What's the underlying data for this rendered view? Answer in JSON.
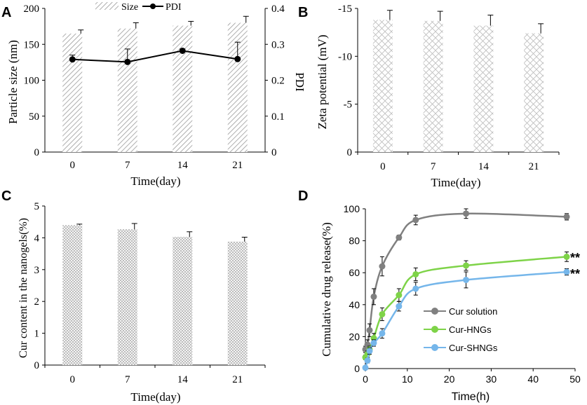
{
  "chart_data": [
    {
      "panel": "A",
      "type": "bar",
      "categories": [
        "0",
        "7",
        "14",
        "21"
      ],
      "xlabel": "Time(day)",
      "ylabel": "Particle size (nm)",
      "ylabel_right": "PDI",
      "ylim": [
        0,
        200
      ],
      "yticks": [
        "0",
        "50",
        "100",
        "150",
        "200"
      ],
      "ylim_right": [
        0,
        0.4
      ],
      "yticks_right": [
        "0",
        "0.1",
        "0.2",
        "0.3",
        "0.4"
      ],
      "series": [
        {
          "name": "Size",
          "type": "bar",
          "values": [
            165,
            172,
            176,
            180
          ],
          "errors": [
            5,
            8,
            6,
            9
          ]
        },
        {
          "name": "PDI",
          "type": "line",
          "axis": "right",
          "values": [
            0.258,
            0.251,
            0.282,
            0.259
          ],
          "errors": [
            0.012,
            0.036,
            0.005,
            0.047
          ]
        }
      ],
      "legend": [
        "Size",
        "PDI"
      ]
    },
    {
      "panel": "B",
      "type": "bar",
      "categories": [
        "0",
        "7",
        "14",
        "21"
      ],
      "xlabel": "Time(day)",
      "ylabel": "Zeta potential (mV)",
      "ylim": [
        0,
        -15
      ],
      "yticks": [
        "-15",
        "-10",
        "-5",
        "0"
      ],
      "series": [
        {
          "name": "Zeta potential",
          "values": [
            -13.8,
            -13.7,
            -13.2,
            -12.4
          ],
          "errors": [
            1.0,
            1.0,
            1.1,
            1.0
          ]
        }
      ]
    },
    {
      "panel": "C",
      "type": "bar",
      "categories": [
        "0",
        "7",
        "14",
        "21"
      ],
      "xlabel": "Time(day)",
      "ylabel": "Cur content in the nanogels(%)",
      "ylim": [
        0,
        5
      ],
      "yticks": [
        "0",
        "1",
        "2",
        "3",
        "4",
        "5"
      ],
      "series": [
        {
          "name": "Cur content",
          "values": [
            4.4,
            4.27,
            4.03,
            3.88
          ],
          "errors": [
            0.03,
            0.18,
            0.16,
            0.14
          ]
        }
      ]
    },
    {
      "panel": "D",
      "type": "line",
      "xlabel": "Time(h)",
      "ylabel": "Cumulative drug release(%)",
      "xlim": [
        0,
        50
      ],
      "xticks": [
        "0",
        "10",
        "20",
        "30",
        "40",
        "50"
      ],
      "ylim": [
        0,
        100
      ],
      "yticks": [
        "0",
        "20",
        "40",
        "60",
        "80",
        "100"
      ],
      "x": [
        0,
        0.5,
        1,
        2,
        4,
        8,
        12,
        24,
        48
      ],
      "series": [
        {
          "name": "Cur solution",
          "color": "#808080",
          "values": [
            12,
            15,
            24,
            45,
            64,
            82,
            93,
            97,
            95
          ],
          "errors": [
            2,
            3,
            4,
            5,
            6,
            1.5,
            3,
            3,
            2
          ]
        },
        {
          "name": "Cur-HNGs",
          "color": "#7ed348",
          "values": [
            7,
            9,
            12,
            19,
            34,
            46,
            59,
            64.5,
            70
          ],
          "errors": [
            1.5,
            2,
            2,
            3,
            4,
            4,
            4,
            3,
            3
          ]
        },
        {
          "name": "Cur-SHNGs",
          "color": "#75b6ea",
          "values": [
            0.5,
            5,
            11,
            16,
            22,
            39,
            50,
            55.5,
            60.5
          ],
          "errors": [
            1,
            1.5,
            2,
            2,
            3,
            3,
            4,
            5,
            2
          ]
        }
      ],
      "annotations": [
        "**",
        "**"
      ]
    }
  ],
  "panel_labels": [
    "A",
    "B",
    "C",
    "D"
  ]
}
